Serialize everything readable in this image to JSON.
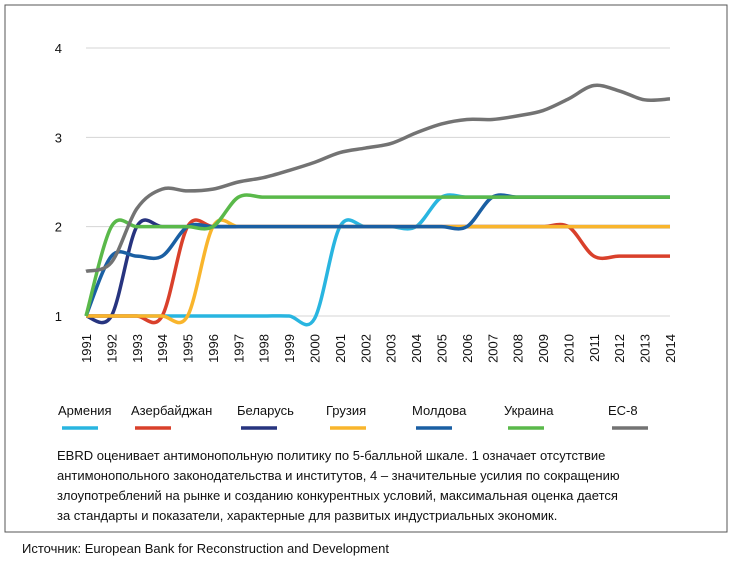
{
  "chart_data": {
    "type": "line",
    "categories": [
      "1991",
      "1992",
      "1993",
      "1994",
      "1995",
      "1996",
      "1997",
      "1998",
      "1999",
      "2000",
      "2001",
      "2002",
      "2003",
      "2004",
      "2005",
      "2006",
      "2007",
      "2008",
      "2009",
      "2010",
      "2011",
      "2012",
      "2013",
      "2014"
    ],
    "ylim": [
      1,
      4
    ],
    "yticks": [
      1,
      2,
      3,
      4
    ],
    "grid": true,
    "series": [
      {
        "name": "Армения",
        "color": "#29b5e0",
        "values": [
          1,
          1,
          1,
          1,
          1,
          1,
          1,
          1,
          1,
          0.97,
          2,
          2,
          2,
          2,
          2.33,
          2.33,
          2.33,
          2.33,
          2.33,
          2.33,
          2.33,
          2.33,
          2.33,
          2.33
        ]
      },
      {
        "name": "Азербайджан",
        "color": "#d9402b",
        "values": [
          1,
          1,
          1,
          1,
          2,
          2,
          2,
          2,
          2,
          2,
          2,
          2,
          2,
          2,
          2,
          2,
          2,
          2,
          2,
          2,
          1.67,
          1.67,
          1.67,
          1.67
        ]
      },
      {
        "name": "Беларусь",
        "color": "#27347f",
        "values": [
          1,
          1,
          2,
          2,
          2,
          2,
          2,
          2,
          2,
          2,
          2,
          2,
          2,
          2,
          2,
          2,
          2,
          2,
          2,
          2,
          2,
          2,
          2,
          2
        ]
      },
      {
        "name": "Грузия",
        "color": "#f9b52c",
        "values": [
          1,
          1,
          1,
          1,
          1,
          2,
          2,
          2,
          2,
          2,
          2,
          2,
          2,
          2,
          2,
          2,
          2,
          2,
          2,
          2,
          2,
          2,
          2,
          2
        ]
      },
      {
        "name": "Молдова",
        "color": "#1a5fa3",
        "values": [
          1,
          1.67,
          1.67,
          1.67,
          2,
          2,
          2,
          2,
          2,
          2,
          2,
          2,
          2,
          2,
          2,
          2,
          2.33,
          2.33,
          2.33,
          2.33,
          2.33,
          2.33,
          2.33,
          2.33
        ]
      },
      {
        "name": "Украина",
        "color": "#5ab94a",
        "values": [
          1,
          2,
          2,
          2,
          2,
          2,
          2.33,
          2.33,
          2.33,
          2.33,
          2.33,
          2.33,
          2.33,
          2.33,
          2.33,
          2.33,
          2.33,
          2.33,
          2.33,
          2.33,
          2.33,
          2.33,
          2.33,
          2.33
        ]
      },
      {
        "name": "ЕС-8",
        "color": "#737373",
        "values": [
          1.5,
          1.6,
          2.2,
          2.42,
          2.4,
          2.42,
          2.5,
          2.55,
          2.63,
          2.72,
          2.83,
          2.88,
          2.93,
          3.05,
          3.15,
          3.2,
          3.2,
          3.24,
          3.3,
          3.43,
          3.58,
          3.52,
          3.42,
          3.43
        ]
      }
    ],
    "note_lines": [
      "EBRD оценивает антимонопольную политику по 5-балльной шкале. 1 означает отсутствие",
      "антимонопольного законодательства и институтов, 4 – значительные усилия по сокращению",
      "злоупотреблений на рынке и созданию конкурентных условий, максимальная оценка дается",
      "за стандарты и показатели, характерные для развитых индустриальных экономик."
    ],
    "source": "Источник: European Bank for Reconstruction and Development"
  }
}
